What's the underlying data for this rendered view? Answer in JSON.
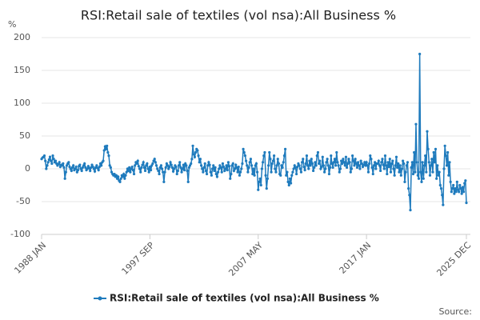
{
  "chart_data": {
    "type": "line",
    "title": "RSI:Retail sale of textiles (vol nsa):All Business %",
    "y_label": "%",
    "source": "Source:",
    "categories": [
      "1988 JAN",
      null,
      null,
      null,
      null,
      null,
      null,
      null,
      null,
      null,
      null,
      null,
      null,
      null,
      null,
      null,
      null,
      null,
      null,
      null,
      null,
      null,
      null,
      null,
      null,
      null,
      null,
      null,
      null,
      null,
      null,
      null,
      null,
      null,
      null,
      null,
      null,
      null,
      null,
      null,
      null,
      null,
      null,
      null,
      null,
      null,
      null,
      null,
      null,
      null,
      null,
      null,
      null,
      null,
      null,
      null,
      null,
      null,
      null,
      null,
      null,
      null,
      null,
      null,
      null,
      null,
      null,
      null,
      null,
      null,
      null,
      null,
      null,
      null,
      null,
      null,
      null,
      null,
      null,
      null,
      null,
      null,
      null,
      null,
      null,
      null,
      null,
      null,
      null,
      null,
      null,
      null,
      null,
      null,
      null,
      null,
      null,
      null,
      null,
      null,
      null,
      null,
      null,
      null,
      null,
      null,
      null,
      null,
      null,
      null,
      null,
      null,
      null,
      null,
      null,
      null,
      "1997 SEP",
      null,
      null,
      null,
      null,
      null,
      null,
      null,
      null,
      null,
      null,
      null,
      null,
      null,
      null,
      null,
      null,
      null,
      null,
      null,
      null,
      null,
      null,
      null,
      null,
      null,
      null,
      null,
      null,
      null,
      null,
      null,
      null,
      null,
      null,
      null,
      null,
      null,
      null,
      null,
      null,
      null,
      null,
      null,
      null,
      null,
      null,
      null,
      null,
      null,
      null,
      null,
      null,
      null,
      null,
      null,
      null,
      null,
      null,
      null,
      null,
      null,
      null,
      null,
      null,
      null,
      null,
      null,
      null,
      null,
      null,
      null,
      null,
      null,
      null,
      null,
      null,
      null,
      null,
      null,
      null,
      null,
      null,
      null,
      null,
      null,
      null,
      null,
      null,
      null,
      null,
      null,
      null,
      null,
      null,
      null,
      null,
      null,
      null,
      null,
      null,
      null,
      null,
      null,
      null,
      null,
      null,
      null,
      null,
      null,
      null,
      null,
      null,
      null,
      null,
      null,
      "2007 MAY",
      null,
      null,
      null,
      null,
      null,
      null,
      null,
      null,
      null,
      null,
      null,
      null,
      null,
      null,
      null,
      null,
      null,
      null,
      null,
      null,
      null,
      null,
      null,
      null,
      null,
      null,
      null,
      null,
      null,
      null,
      null,
      null,
      null,
      null,
      null,
      null,
      null,
      null,
      null,
      null,
      null,
      null,
      null,
      null,
      null,
      null,
      null,
      null,
      null,
      null,
      null,
      null,
      null,
      null,
      null,
      null,
      null,
      null,
      null,
      null,
      null,
      null,
      null,
      null,
      null,
      null,
      null,
      null,
      null,
      null,
      null,
      null,
      null,
      null,
      null,
      null,
      null,
      null,
      null,
      null,
      null,
      null,
      null,
      null,
      null,
      null,
      null,
      null,
      null,
      null,
      null,
      null,
      null,
      null,
      null,
      null,
      null,
      null,
      null,
      null,
      null,
      null,
      null,
      null,
      null,
      null,
      null,
      null,
      null,
      null,
      null,
      null,
      null,
      null,
      null,
      "2017 JAN",
      null,
      null,
      null,
      null,
      null,
      null,
      null,
      null,
      null,
      null,
      null,
      null,
      null,
      null,
      null,
      null,
      null,
      null,
      null,
      null,
      null,
      null,
      null,
      null,
      null,
      null,
      null,
      null,
      null,
      null,
      null,
      null,
      null,
      null,
      null,
      null,
      null,
      null,
      null,
      null,
      null,
      null,
      null,
      null,
      null,
      null,
      null,
      null,
      null,
      null,
      null,
      null,
      null,
      null,
      null,
      null,
      null,
      null,
      null,
      null,
      null,
      null,
      null,
      null,
      null,
      null,
      null,
      null,
      null,
      null,
      null,
      null,
      null,
      null,
      null,
      null,
      null,
      null,
      null,
      null,
      null,
      null,
      null,
      null,
      null,
      null,
      null,
      null,
      null,
      null,
      null,
      null,
      null,
      null,
      null,
      null,
      null,
      null,
      null,
      null,
      null,
      null,
      null,
      null,
      null,
      null,
      "2025 DEC"
    ],
    "series": [
      {
        "name": "RSI:Retail sale of textiles (vol nsa):All Business %",
        "color": "#1f7bbd",
        "values": [
          15,
          17,
          18,
          20,
          12,
          0,
          5,
          10,
          14,
          18,
          12,
          8,
          20,
          15,
          10,
          12,
          8,
          5,
          7,
          10,
          3,
          6,
          5,
          8,
          2,
          -15,
          -5,
          5,
          8,
          10,
          3,
          0,
          -3,
          2,
          5,
          -2,
          0,
          3,
          -5,
          -2,
          4,
          6,
          0,
          -3,
          2,
          5,
          8,
          2,
          -2,
          0,
          4,
          1,
          -3,
          2,
          6,
          3,
          0,
          -4,
          2,
          5,
          1,
          -2,
          3,
          8,
          5,
          10,
          12,
          28,
          34,
          30,
          35,
          25,
          20,
          5,
          2,
          -5,
          -8,
          -10,
          -8,
          -12,
          -10,
          -15,
          -12,
          -18,
          -20,
          -15,
          -10,
          -12,
          -8,
          -15,
          -10,
          -5,
          0,
          -3,
          2,
          -5,
          0,
          3,
          -2,
          -8,
          5,
          10,
          8,
          12,
          4,
          0,
          -5,
          2,
          6,
          10,
          2,
          -3,
          5,
          8,
          0,
          -5,
          3,
          -2,
          5,
          8,
          12,
          15,
          10,
          5,
          0,
          -3,
          -8,
          2,
          5,
          0,
          -5,
          -20,
          -5,
          2,
          8,
          5,
          0,
          3,
          10,
          6,
          2,
          -4,
          0,
          5,
          3,
          -8,
          -3,
          5,
          10,
          2,
          -5,
          0,
          6,
          -2,
          8,
          5,
          -3,
          -20,
          2,
          5,
          8,
          15,
          35,
          22,
          18,
          25,
          30,
          28,
          20,
          10,
          15,
          5,
          0,
          -5,
          2,
          8,
          -3,
          -8,
          5,
          10,
          6,
          -5,
          -10,
          0,
          5,
          -3,
          2,
          -8,
          -12,
          -5,
          0,
          5,
          2,
          -5,
          8,
          3,
          -3,
          0,
          5,
          -2,
          10,
          4,
          -15,
          -8,
          5,
          8,
          -3,
          0,
          6,
          2,
          -5,
          3,
          -10,
          -5,
          0,
          8,
          30,
          25,
          20,
          12,
          5,
          -5,
          2,
          10,
          15,
          5,
          -8,
          0,
          -10,
          5,
          8,
          -5,
          -32,
          -20,
          -15,
          -25,
          0,
          10,
          20,
          25,
          -10,
          -30,
          -15,
          5,
          25,
          15,
          -5,
          8,
          12,
          20,
          0,
          -5,
          5,
          15,
          8,
          -8,
          -10,
          5,
          2,
          10,
          20,
          30,
          -10,
          -5,
          -20,
          -25,
          -15,
          -22,
          -10,
          -5,
          0,
          5,
          2,
          -8,
          3,
          8,
          5,
          0,
          -5,
          10,
          15,
          3,
          -2,
          8,
          20,
          5,
          0,
          12,
          5,
          15,
          8,
          -3,
          2,
          10,
          5,
          20,
          25,
          8,
          12,
          0,
          3,
          18,
          5,
          -5,
          0,
          10,
          15,
          5,
          -8,
          2,
          20,
          8,
          2,
          10,
          15,
          5,
          25,
          10,
          5,
          -5,
          0,
          12,
          8,
          15,
          10,
          5,
          18,
          2,
          8,
          15,
          10,
          -5,
          0,
          20,
          12,
          5,
          15,
          8,
          2,
          10,
          5,
          0,
          12,
          8,
          3,
          6,
          10,
          5,
          10,
          5,
          -5,
          8,
          20,
          15,
          2,
          -8,
          5,
          10,
          0,
          8,
          8,
          12,
          5,
          -3,
          10,
          15,
          6,
          0,
          20,
          5,
          -8,
          10,
          3,
          15,
          -5,
          8,
          12,
          0,
          -10,
          5,
          18,
          2,
          8,
          -5,
          5,
          -10,
          0,
          12,
          8,
          -20,
          -5,
          5,
          10,
          -30,
          -40,
          -63,
          2,
          10,
          -8,
          25,
          -5,
          68,
          10,
          -10,
          -15,
          175,
          -5,
          -20,
          10,
          -15,
          5,
          20,
          -5,
          57,
          30,
          10,
          -10,
          5,
          15,
          -5,
          25,
          10,
          30,
          -15,
          5,
          -10,
          -5,
          -25,
          -30,
          -40,
          -55,
          0,
          35,
          20,
          5,
          25,
          -10,
          10,
          -20,
          -35,
          -30,
          -25,
          -38,
          -30,
          -35,
          -20,
          -32,
          -35,
          -25,
          -30,
          -38,
          -28,
          -35,
          -22,
          -18,
          -52
        ]
      }
    ],
    "ylim": [
      -100,
      200
    ],
    "yticks": [
      -100,
      -50,
      0,
      50,
      100,
      150,
      200
    ],
    "grid": true
  }
}
